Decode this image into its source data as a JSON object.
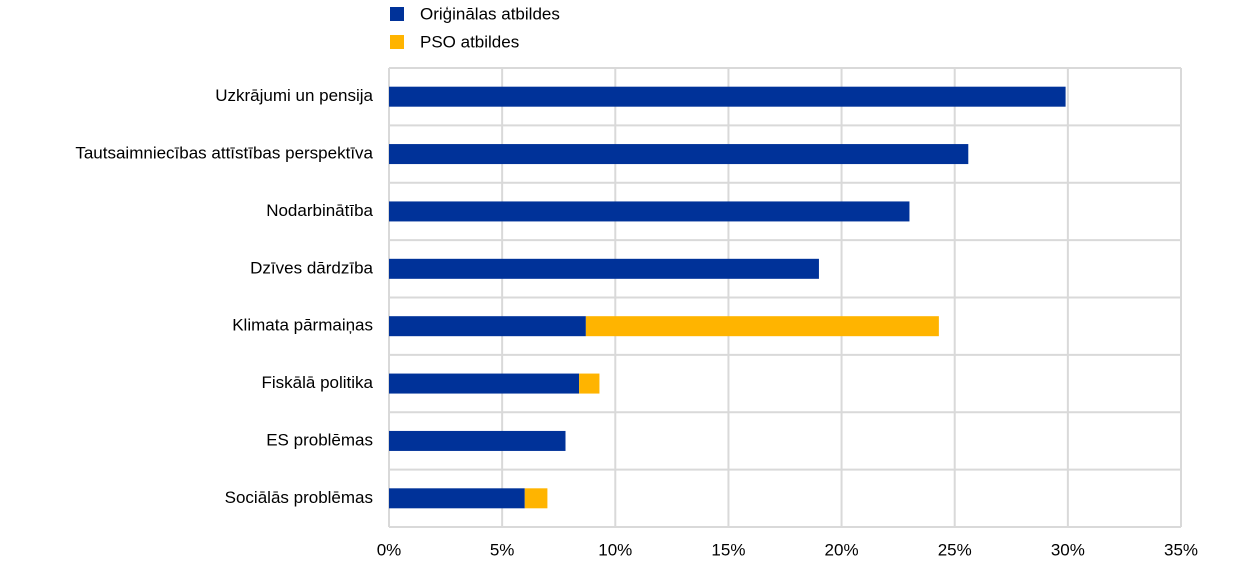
{
  "chart_data": {
    "type": "stacked-barh",
    "categories": [
      "Uzkrājumi un pensija",
      "Tautsaimniecības attīstības perspektīva",
      "Nodarbinātība",
      "Dzīves dārdzība",
      "Klimata pārmaiņas",
      "Fiskālā politika",
      "ES problēmas",
      "Sociālās problēmas"
    ],
    "series": [
      {
        "name": "Oriģinālas atbildes",
        "color": "#003299",
        "values": [
          29.9,
          25.6,
          23.0,
          19.0,
          8.7,
          8.4,
          7.8,
          6.0
        ]
      },
      {
        "name": "PSO atbildes",
        "color": "#ffb400",
        "values": [
          0,
          0,
          0,
          0,
          15.6,
          0.9,
          0,
          1.0
        ]
      }
    ],
    "xlim": [
      0,
      35
    ],
    "xticks": [
      {
        "value": 0,
        "label": "0%"
      },
      {
        "value": 5,
        "label": "5%"
      },
      {
        "value": 10,
        "label": "10%"
      },
      {
        "value": 15,
        "label": "15%"
      },
      {
        "value": 20,
        "label": "20%"
      },
      {
        "value": 25,
        "label": "25%"
      },
      {
        "value": 30,
        "label": "30%"
      },
      {
        "value": 35,
        "label": "35%"
      }
    ],
    "grid": true,
    "legend": "top"
  }
}
